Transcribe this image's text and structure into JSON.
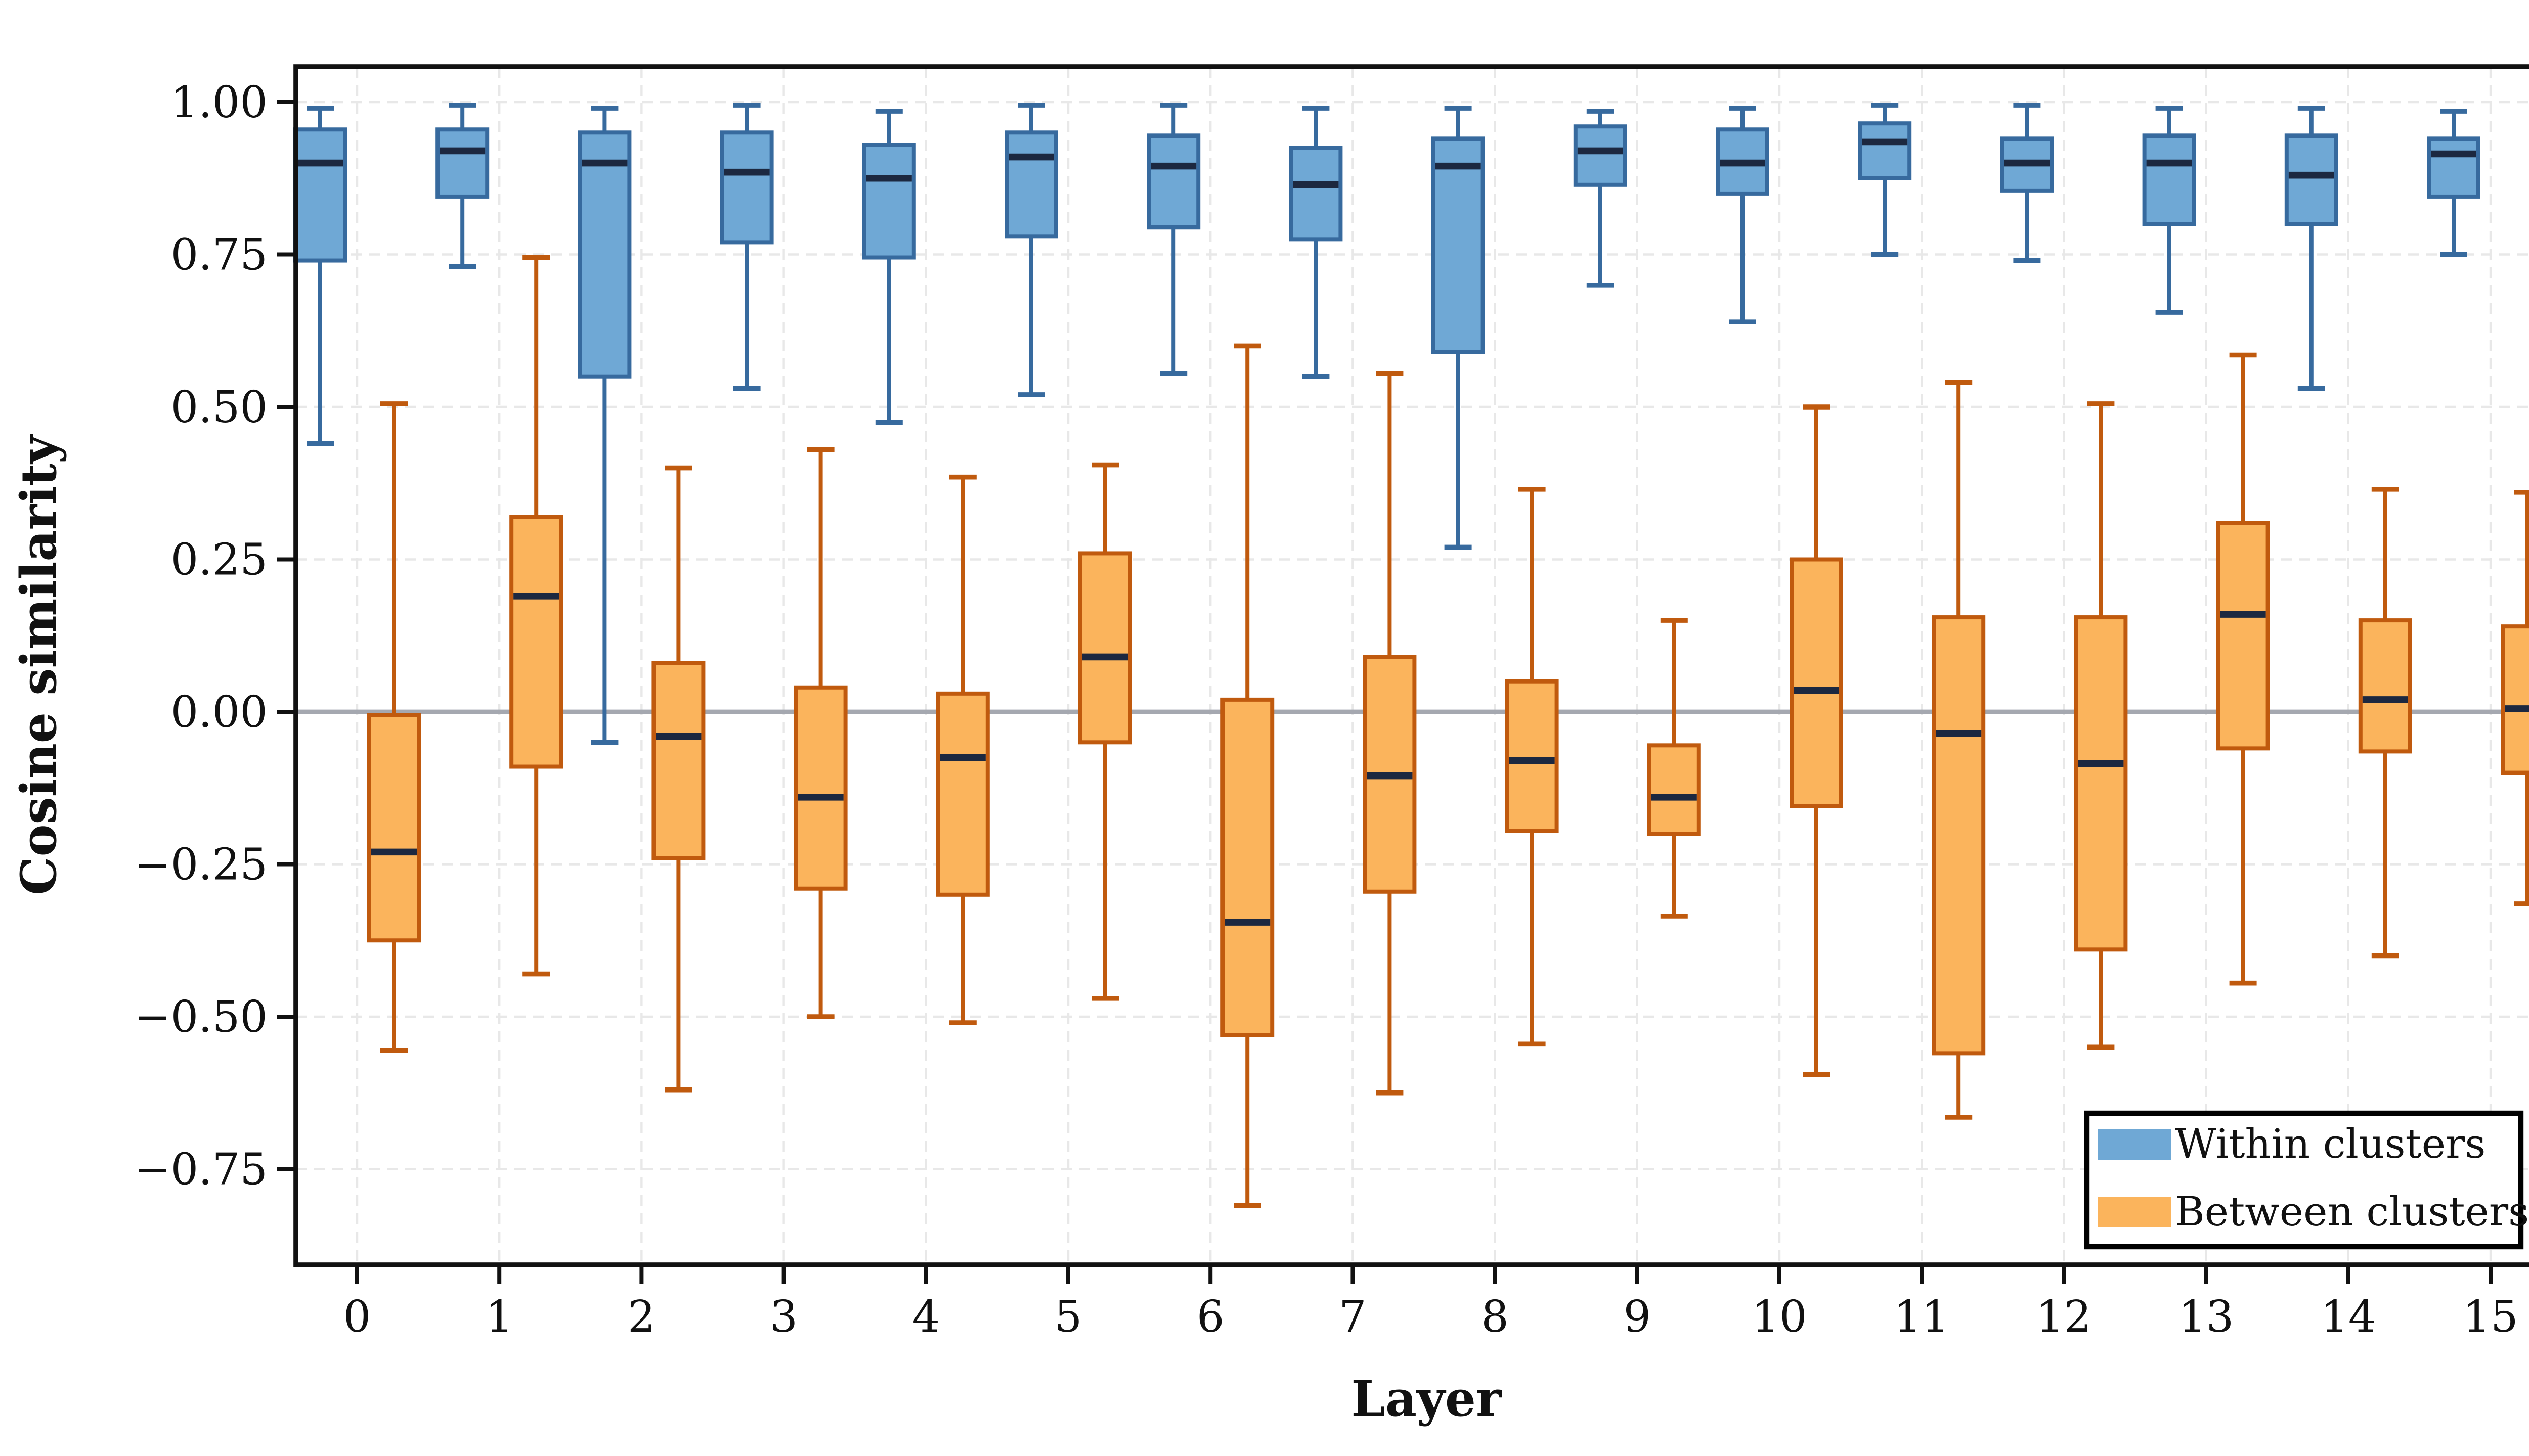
{
  "chart_data": {
    "type": "boxplot",
    "title": "",
    "xlabel": "Layer",
    "ylabel": "Cosine similarity",
    "categories": [
      "0",
      "1",
      "2",
      "3",
      "4",
      "5",
      "6",
      "7",
      "8",
      "9",
      "10",
      "11",
      "12",
      "13",
      "14",
      "15"
    ],
    "ytick_labels": [
      "1.00",
      "0.75",
      "0.50",
      "0.25",
      "0.00",
      "−0.25",
      "−0.50",
      "−0.75"
    ],
    "ytick_values": [
      1.0,
      0.75,
      0.5,
      0.25,
      0.0,
      -0.25,
      -0.5,
      -0.75
    ],
    "ylim": [
      -0.907,
      1.058
    ],
    "grid": "dashed-both-axes",
    "zero_line": 0.0,
    "legend_position": "lower-right",
    "series": [
      {
        "name": "Within clusters",
        "fill": "#6FA8D5",
        "edge": "#376A9E",
        "boxes": [
          {
            "whislo": 0.44,
            "q1": 0.74,
            "med": 0.9,
            "q3": 0.955,
            "whishi": 0.99
          },
          {
            "whislo": 0.73,
            "q1": 0.845,
            "med": 0.92,
            "q3": 0.955,
            "whishi": 0.995
          },
          {
            "whislo": -0.05,
            "q1": 0.55,
            "med": 0.9,
            "q3": 0.95,
            "whishi": 0.99
          },
          {
            "whislo": 0.53,
            "q1": 0.77,
            "med": 0.885,
            "q3": 0.95,
            "whishi": 0.995
          },
          {
            "whislo": 0.475,
            "q1": 0.745,
            "med": 0.875,
            "q3": 0.93,
            "whishi": 0.985
          },
          {
            "whislo": 0.52,
            "q1": 0.78,
            "med": 0.91,
            "q3": 0.95,
            "whishi": 0.995
          },
          {
            "whislo": 0.555,
            "q1": 0.795,
            "med": 0.895,
            "q3": 0.945,
            "whishi": 0.995
          },
          {
            "whislo": 0.55,
            "q1": 0.775,
            "med": 0.865,
            "q3": 0.925,
            "whishi": 0.99
          },
          {
            "whislo": 0.27,
            "q1": 0.59,
            "med": 0.895,
            "q3": 0.94,
            "whishi": 0.99
          },
          {
            "whislo": 0.7,
            "q1": 0.865,
            "med": 0.92,
            "q3": 0.96,
            "whishi": 0.985
          },
          {
            "whislo": 0.64,
            "q1": 0.85,
            "med": 0.9,
            "q3": 0.955,
            "whishi": 0.99
          },
          {
            "whislo": 0.75,
            "q1": 0.875,
            "med": 0.935,
            "q3": 0.965,
            "whishi": 0.995
          },
          {
            "whislo": 0.74,
            "q1": 0.855,
            "med": 0.9,
            "q3": 0.94,
            "whishi": 0.995
          },
          {
            "whislo": 0.655,
            "q1": 0.8,
            "med": 0.9,
            "q3": 0.945,
            "whishi": 0.99
          },
          {
            "whislo": 0.53,
            "q1": 0.8,
            "med": 0.88,
            "q3": 0.945,
            "whishi": 0.99
          },
          {
            "whislo": 0.75,
            "q1": 0.845,
            "med": 0.915,
            "q3": 0.94,
            "whishi": 0.985
          }
        ]
      },
      {
        "name": "Between clusters",
        "fill": "#FBB45C",
        "edge": "#C05A0E",
        "boxes": [
          {
            "whislo": -0.555,
            "q1": -0.375,
            "med": -0.23,
            "q3": -0.005,
            "whishi": 0.505
          },
          {
            "whislo": -0.43,
            "q1": -0.09,
            "med": 0.19,
            "q3": 0.32,
            "whishi": 0.745
          },
          {
            "whislo": -0.62,
            "q1": -0.24,
            "med": -0.04,
            "q3": 0.08,
            "whishi": 0.4
          },
          {
            "whislo": -0.5,
            "q1": -0.29,
            "med": -0.14,
            "q3": 0.04,
            "whishi": 0.43
          },
          {
            "whislo": -0.51,
            "q1": -0.3,
            "med": -0.075,
            "q3": 0.03,
            "whishi": 0.385
          },
          {
            "whislo": -0.47,
            "q1": -0.05,
            "med": 0.09,
            "q3": 0.26,
            "whishi": 0.405
          },
          {
            "whislo": -0.81,
            "q1": -0.53,
            "med": -0.345,
            "q3": 0.02,
            "whishi": 0.6
          },
          {
            "whislo": -0.625,
            "q1": -0.295,
            "med": -0.105,
            "q3": 0.09,
            "whishi": 0.555
          },
          {
            "whislo": -0.545,
            "q1": -0.195,
            "med": -0.08,
            "q3": 0.05,
            "whishi": 0.365
          },
          {
            "whislo": -0.335,
            "q1": -0.2,
            "med": -0.14,
            "q3": -0.055,
            "whishi": 0.15
          },
          {
            "whislo": -0.595,
            "q1": -0.155,
            "med": 0.035,
            "q3": 0.25,
            "whishi": 0.5
          },
          {
            "whislo": -0.665,
            "q1": -0.56,
            "med": -0.035,
            "q3": 0.155,
            "whishi": 0.54
          },
          {
            "whislo": -0.55,
            "q1": -0.39,
            "med": -0.085,
            "q3": 0.155,
            "whishi": 0.505
          },
          {
            "whislo": -0.445,
            "q1": -0.06,
            "med": 0.16,
            "q3": 0.31,
            "whishi": 0.585
          },
          {
            "whislo": -0.4,
            "q1": -0.065,
            "med": 0.02,
            "q3": 0.15,
            "whishi": 0.365
          },
          {
            "whislo": -0.315,
            "q1": -0.1,
            "med": 0.005,
            "q3": 0.14,
            "whishi": 0.36
          }
        ]
      }
    ],
    "colors": {
      "median_line": "#1C2840",
      "zero_line": "#A5A8B0",
      "gridline": "#E8E8E8",
      "spine": "#111111",
      "background": "#FFFFFF",
      "legend_border": "#000000"
    },
    "legend": [
      "Within clusters",
      "Between clusters"
    ]
  }
}
